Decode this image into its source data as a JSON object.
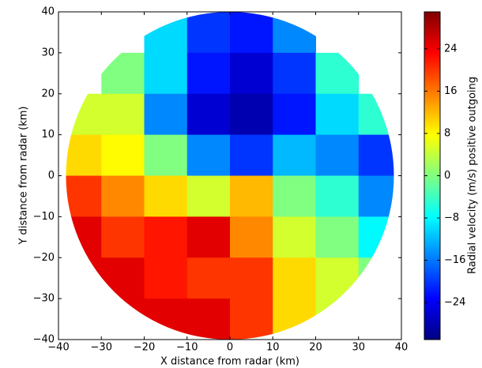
{
  "chart_data": {
    "type": "heatmap",
    "x_label": "X distance from radar (km)",
    "y_label": "Y distance from radar (km)",
    "colorbar_label": "Radial velocity (m/s) positive outgoing",
    "colormap": "jet",
    "xlim": [
      -40,
      40
    ],
    "ylim": [
      -40,
      40
    ],
    "xticks": [
      {
        "value": -40,
        "label": "−40"
      },
      {
        "value": -30,
        "label": "−30"
      },
      {
        "value": -20,
        "label": "−20"
      },
      {
        "value": -10,
        "label": "−10"
      },
      0,
      10,
      20,
      30,
      40
    ],
    "yticks": [
      {
        "value": -40,
        "label": "−40"
      },
      {
        "value": -30,
        "label": "−30"
      },
      {
        "value": -20,
        "label": "−20"
      },
      {
        "value": -10,
        "label": "−10"
      },
      0,
      10,
      20,
      30,
      40
    ],
    "clim": [
      -31,
      31
    ],
    "cticks": [
      {
        "value": -24,
        "label": "−24"
      },
      {
        "value": -16,
        "label": "−16"
      },
      {
        "value": -8,
        "label": "−8"
      },
      0,
      8,
      16,
      24
    ],
    "x": [
      -35,
      -25,
      -15,
      -5,
      5,
      15,
      25,
      35
    ],
    "y": [
      35,
      25,
      15,
      5,
      -5,
      -15,
      -25,
      -35
    ],
    "values": [
      [
        null,
        null,
        -10,
        -20,
        -22,
        -15,
        null,
        null
      ],
      [
        null,
        0,
        -10,
        -22,
        -26,
        -20,
        -5,
        null
      ],
      [
        5,
        5,
        -15,
        -26,
        -28,
        -22,
        -10,
        -5
      ],
      [
        10,
        8,
        0,
        -15,
        -20,
        -12,
        -15,
        -20
      ],
      [
        20,
        15,
        10,
        5,
        12,
        0,
        -5,
        -15
      ],
      [
        25,
        20,
        22,
        25,
        15,
        5,
        0,
        -8
      ],
      [
        25,
        25,
        22,
        20,
        20,
        10,
        5,
        0
      ],
      [
        null,
        25,
        25,
        25,
        20,
        10,
        5,
        null
      ]
    ]
  }
}
